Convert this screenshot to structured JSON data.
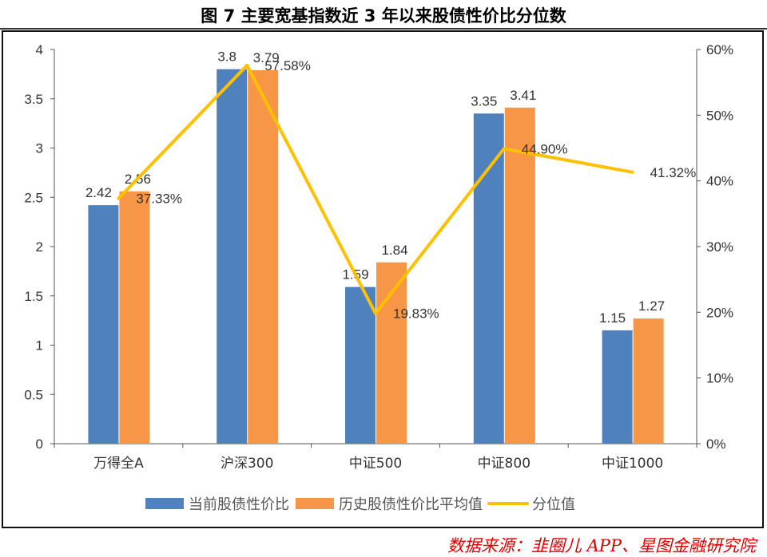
{
  "title": "图 7 主要宽基指数近 3 年以来股债性价比分位数",
  "source": "数据来源：韭圈儿 APP、星图金融研究院",
  "chart_data": {
    "type": "bar+line",
    "categories": [
      "万得全A",
      "沪深300",
      "中证500",
      "中证800",
      "中证1000"
    ],
    "series": [
      {
        "name": "当前股债性价比",
        "type": "bar",
        "axis": "left",
        "color": "#4f81bd",
        "values": [
          2.42,
          3.8,
          1.59,
          3.35,
          1.15
        ]
      },
      {
        "name": "历史股债性价比平均值",
        "type": "bar",
        "axis": "left",
        "color": "#f79646",
        "values": [
          2.56,
          3.79,
          1.84,
          3.41,
          1.27
        ]
      },
      {
        "name": "分位值",
        "type": "line",
        "axis": "right",
        "color": "#ffc000",
        "values": [
          37.33,
          57.58,
          19.83,
          44.9,
          41.32
        ],
        "labels": [
          "37.33%",
          "57.58%",
          "19.83%",
          "44.90%",
          "41.32%"
        ]
      }
    ],
    "left_axis": {
      "ylim": [
        0,
        4
      ],
      "ticks": [
        "0",
        "0.5",
        "1",
        "1.5",
        "2",
        "2.5",
        "3",
        "3.5",
        "4"
      ]
    },
    "right_axis": {
      "ylim": [
        0,
        60
      ],
      "ticks": [
        "0%",
        "10%",
        "20%",
        "30%",
        "40%",
        "50%",
        "60%"
      ]
    },
    "grid": false,
    "legend": "bottom"
  }
}
